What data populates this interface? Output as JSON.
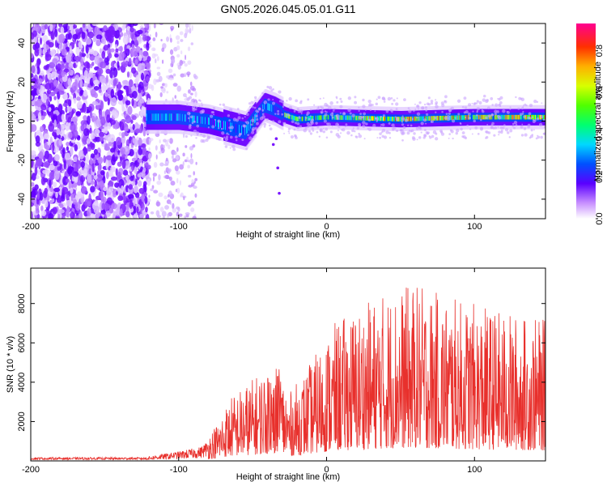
{
  "title": "GN05.2026.045.05.01.G11",
  "chart_data": [
    {
      "type": "heatmap",
      "name": "spectrogram",
      "xlabel": "Height of straight line (km)",
      "ylabel": "Frequency (Hz)",
      "xlim": [
        -200,
        148
      ],
      "ylim": [
        -50,
        50
      ],
      "xticks": [
        -200,
        -100,
        0,
        100
      ],
      "yticks": [
        -40,
        -20,
        0,
        20,
        40
      ],
      "colorbar": {
        "label": "Normalized spectral amplitude",
        "range": [
          0.0,
          0.93
        ],
        "ticks": [
          0.0,
          0.2,
          0.4,
          0.6,
          0.8
        ]
      },
      "band_centerline": [
        {
          "x": -120,
          "y": 2
        },
        {
          "x": -100,
          "y": 2
        },
        {
          "x": -80,
          "y": 0
        },
        {
          "x": -65,
          "y": -3
        },
        {
          "x": -55,
          "y": -5
        },
        {
          "x": -48,
          "y": 2
        },
        {
          "x": -42,
          "y": 8
        },
        {
          "x": -35,
          "y": 6
        },
        {
          "x": -28,
          "y": 3
        },
        {
          "x": -20,
          "y": 1
        },
        {
          "x": 0,
          "y": 2
        },
        {
          "x": 50,
          "y": 1
        },
        {
          "x": 100,
          "y": 2
        },
        {
          "x": 148,
          "y": 2
        }
      ],
      "noise_region_x": [
        -200,
        -120
      ]
    },
    {
      "type": "line",
      "name": "snr",
      "xlabel": "Height of straight line (km)",
      "ylabel": "SNR (10 * v/v)",
      "xlim": [
        -200,
        148
      ],
      "ylim": [
        0,
        9800
      ],
      "xticks": [
        -200,
        -100,
        0,
        100
      ],
      "yticks": [
        2000,
        4000,
        6000,
        8000
      ],
      "color": "#e8302c",
      "envelope": [
        {
          "x": -200,
          "y": 150
        },
        {
          "x": -120,
          "y": 150
        },
        {
          "x": -100,
          "y": 300
        },
        {
          "x": -85,
          "y": 450
        },
        {
          "x": -75,
          "y": 900
        },
        {
          "x": -65,
          "y": 1600
        },
        {
          "x": -55,
          "y": 1900
        },
        {
          "x": -45,
          "y": 2200
        },
        {
          "x": -35,
          "y": 2600
        },
        {
          "x": -25,
          "y": 1700
        },
        {
          "x": -15,
          "y": 2200
        },
        {
          "x": -5,
          "y": 2800
        },
        {
          "x": 5,
          "y": 3400
        },
        {
          "x": 20,
          "y": 3800
        },
        {
          "x": 40,
          "y": 4200
        },
        {
          "x": 60,
          "y": 4400
        },
        {
          "x": 80,
          "y": 4100
        },
        {
          "x": 100,
          "y": 3900
        },
        {
          "x": 120,
          "y": 3700
        },
        {
          "x": 148,
          "y": 3500
        }
      ]
    }
  ]
}
